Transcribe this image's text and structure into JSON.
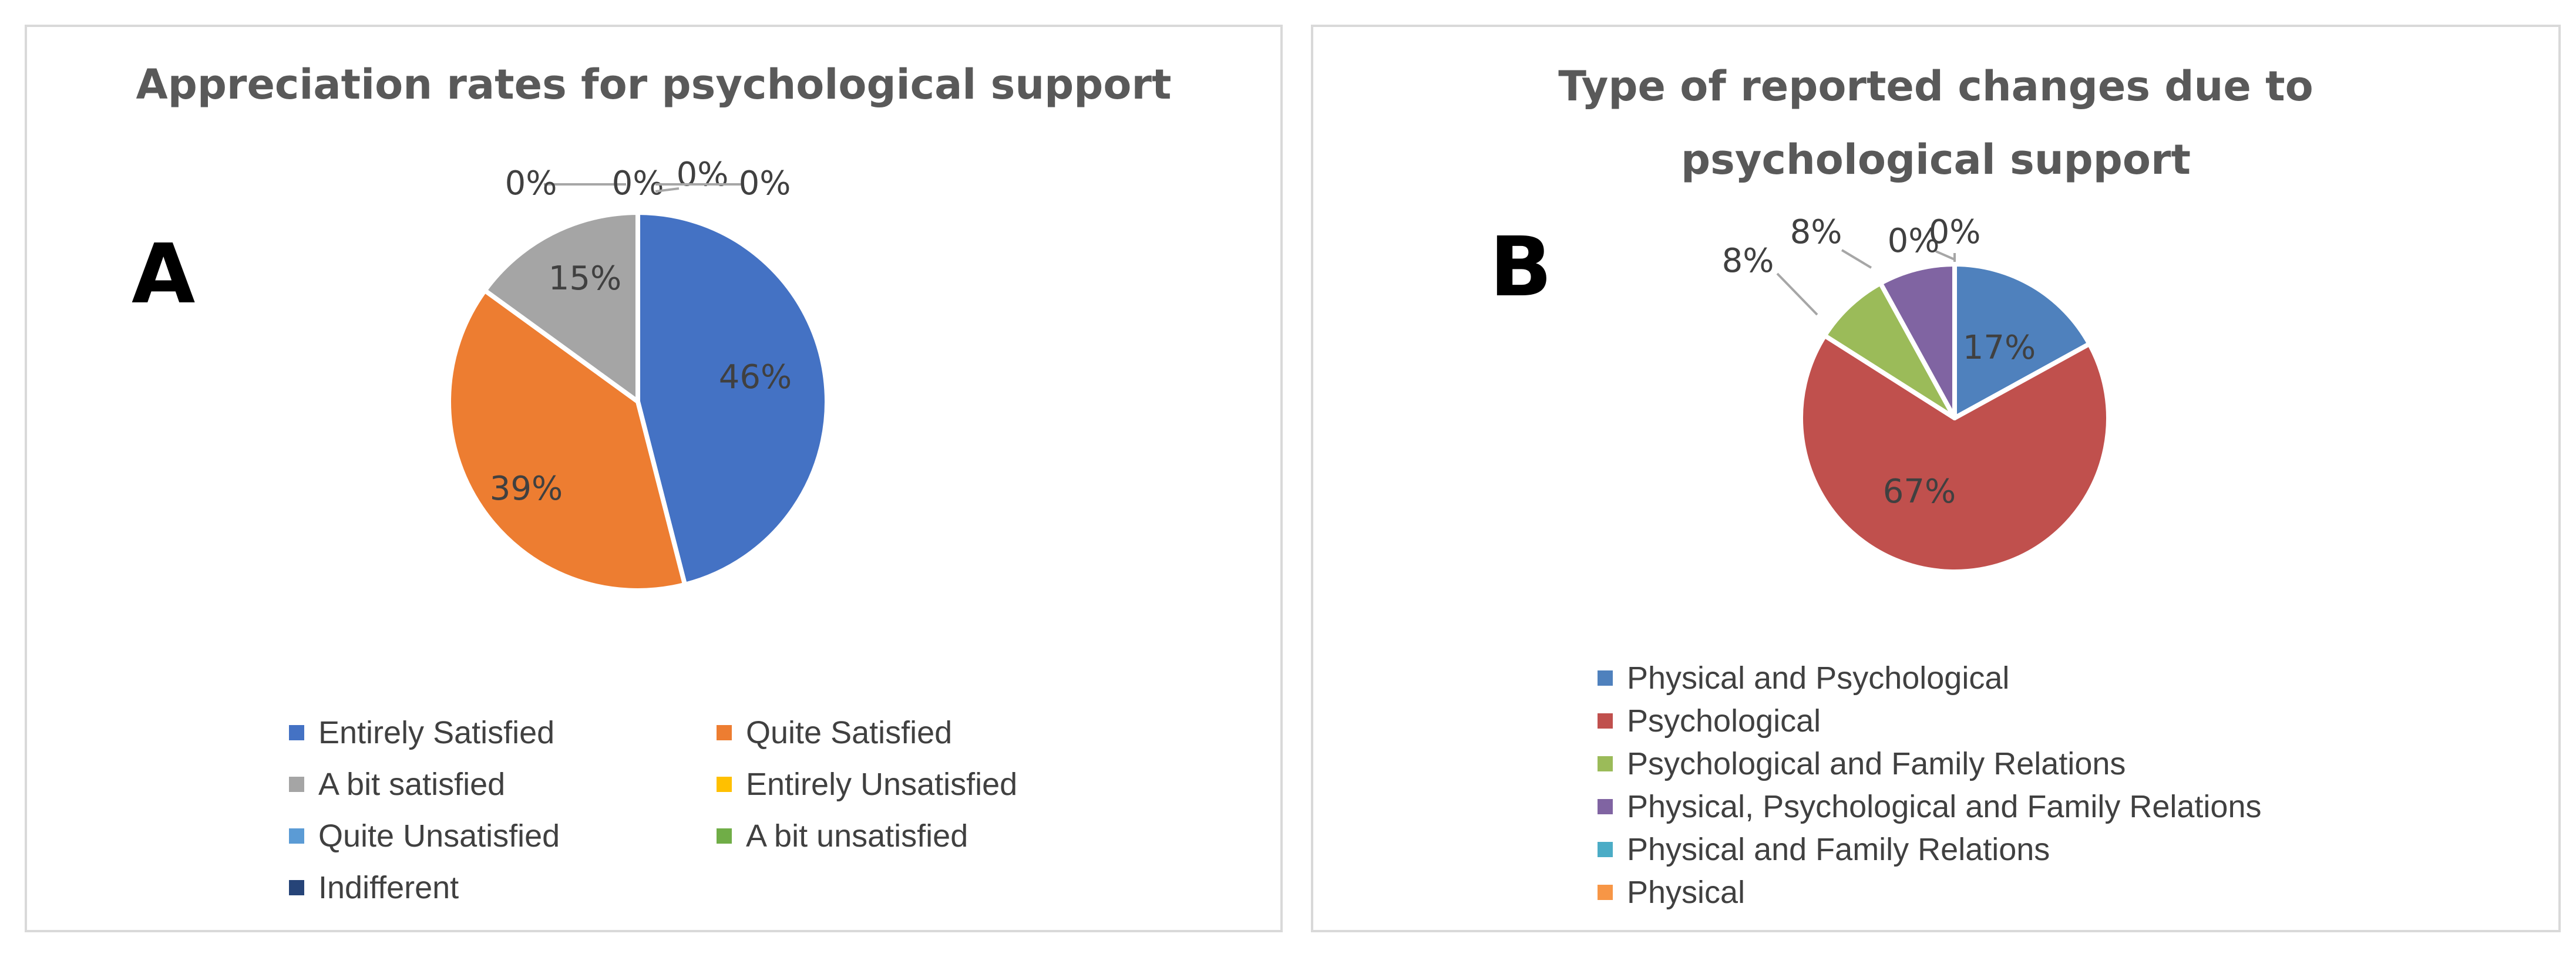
{
  "chart_data": [
    {
      "type": "pie",
      "panel_label": "A",
      "title": "Appreciation rates for psychological support",
      "legend_position": "bottom",
      "slices": [
        {
          "name": "Entirely Satisfied",
          "value": 46,
          "label": "46%",
          "color": "#4472c4"
        },
        {
          "name": "Quite Satisfied",
          "value": 39,
          "label": "39%",
          "color": "#ed7d31"
        },
        {
          "name": "A bit satisfied",
          "value": 15,
          "label": "15%",
          "color": "#a5a5a5"
        },
        {
          "name": "Entirely Unsatisfied",
          "value": 0,
          "label": "0%",
          "color": "#ffc000"
        },
        {
          "name": "Quite Unsatisfied",
          "value": 0,
          "label": "0%",
          "color": "#5b9bd5"
        },
        {
          "name": "A bit unsatisfied",
          "value": 0,
          "label": "0%",
          "color": "#70ad47"
        },
        {
          "name": "Indifferent",
          "value": 0,
          "label": "0%",
          "color": "#264478"
        }
      ]
    },
    {
      "type": "pie",
      "panel_label": "B",
      "title_lines": [
        "Type of reported changes due to",
        "psychological support"
      ],
      "legend_position": "bottom",
      "slices": [
        {
          "name": "Physical and Psychological",
          "value": 17,
          "label": "17%",
          "color": "#4f81bd"
        },
        {
          "name": "Psychological",
          "value": 67,
          "label": "67%",
          "color": "#c0504d"
        },
        {
          "name": "Psychological and Family Relations",
          "value": 8,
          "label": "8%",
          "color": "#9bbb59"
        },
        {
          "name": "Physical, Psychological and Family Relations",
          "value": 8,
          "label": "8%",
          "color": "#8064a2"
        },
        {
          "name": "Physical and Family Relations",
          "value": 0,
          "label": "0%",
          "color": "#4bacc6"
        },
        {
          "name": "Physical",
          "value": 0,
          "label": "0%",
          "color": "#f79646"
        }
      ]
    }
  ]
}
